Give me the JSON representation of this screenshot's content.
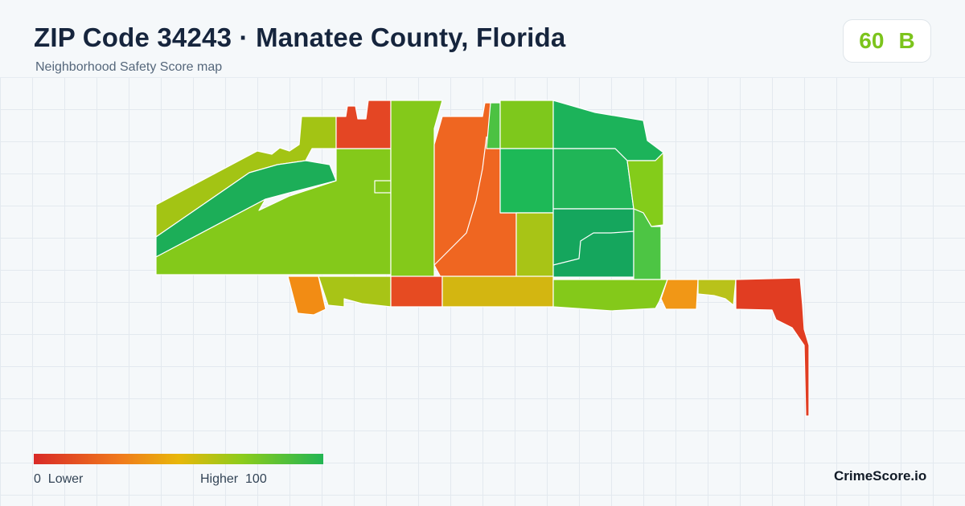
{
  "header": {
    "title": "ZIP Code 34243 · Manatee County, Florida",
    "subtitle": "Neighborhood Safety Score map"
  },
  "score": {
    "value": "60",
    "grade": "B",
    "color": "#7cc41c"
  },
  "legend": {
    "min_value": "0",
    "min_label": "Lower",
    "max_label": "Higher",
    "max_value": "100",
    "colors": [
      "#d92a27",
      "#f07a1c",
      "#e8b70a",
      "#8ccc1c",
      "#22b553"
    ]
  },
  "brand": "CrimeScore.io",
  "map": {
    "regions": [
      {
        "name": "region-northwest-strip",
        "color": "#a3c414"
      },
      {
        "name": "region-northwest-band",
        "color": "#1cae58"
      },
      {
        "name": "region-west-large",
        "color": "#84c91a"
      },
      {
        "name": "region-north-red",
        "color": "#e44624"
      },
      {
        "name": "region-north-notch",
        "color": "#84c91a"
      },
      {
        "name": "region-central-orange",
        "color": "#ef6621"
      },
      {
        "name": "region-central-green",
        "color": "#4cc242"
      },
      {
        "name": "region-thin-strip",
        "color": "#7ec81c"
      },
      {
        "name": "region-northeast-dark",
        "color": "#1db957"
      },
      {
        "name": "region-olive-block",
        "color": "#a8c416"
      },
      {
        "name": "region-green-block",
        "color": "#1cb35a"
      },
      {
        "name": "region-northeast-far",
        "color": "#20b557"
      },
      {
        "name": "region-east-lime",
        "color": "#84cc1a"
      },
      {
        "name": "region-east-teal",
        "color": "#15a65d"
      },
      {
        "name": "region-east-green",
        "color": "#4dc544"
      },
      {
        "name": "region-east-orange",
        "color": "#f28c14"
      },
      {
        "name": "region-south-olive",
        "color": "#a8c416"
      },
      {
        "name": "region-south-red",
        "color": "#e64b22"
      },
      {
        "name": "region-south-gold",
        "color": "#d3b611"
      },
      {
        "name": "region-south-lime",
        "color": "#84c91a"
      },
      {
        "name": "region-south-orange",
        "color": "#f19716"
      },
      {
        "name": "region-south-olive-small",
        "color": "#b9c21a"
      },
      {
        "name": "region-south-red-small",
        "color": "#e13d22"
      },
      {
        "name": "region-southeast-gold",
        "color": "#e6b20c"
      }
    ]
  }
}
